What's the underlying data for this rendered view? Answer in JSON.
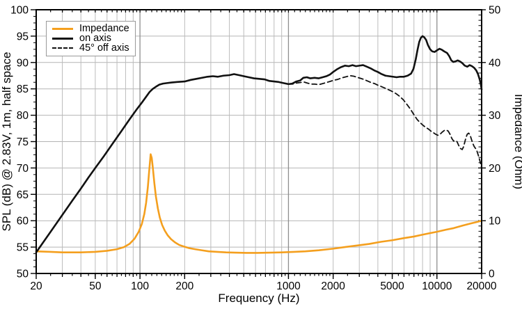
{
  "chart_data": {
    "type": "line",
    "x_axis": {
      "label": "Frequency (Hz)",
      "scale": "log",
      "min": 20,
      "max": 20000,
      "tick_labels": [
        20,
        50,
        100,
        200,
        1000,
        2000,
        5000,
        10000,
        20000
      ]
    },
    "y_left": {
      "label": "SPL (dB) @ 2.83V, 1m, half space",
      "min": 50,
      "max": 100,
      "tick_step": 5,
      "ticks": [
        50,
        55,
        60,
        65,
        70,
        75,
        80,
        85,
        90,
        95,
        100
      ]
    },
    "y_right": {
      "label": "Impedance (Ohm)",
      "min": 0,
      "max": 50,
      "tick_step": 10,
      "ticks": [
        0,
        10,
        20,
        30,
        40,
        50
      ]
    },
    "grid": {
      "minor_color": "#bcbcbc",
      "decade_color": "#8e8e8e",
      "horizontal_color": "#b4b4b4"
    },
    "series": [
      {
        "name": "Impedance",
        "axis": "right",
        "color": "#F49F1E",
        "style": "solid",
        "width": 2.6,
        "points": [
          [
            20,
            4.2
          ],
          [
            25,
            4.1
          ],
          [
            30,
            4.0
          ],
          [
            40,
            4.0
          ],
          [
            50,
            4.1
          ],
          [
            60,
            4.3
          ],
          [
            70,
            4.6
          ],
          [
            78,
            5.0
          ],
          [
            85,
            5.6
          ],
          [
            92,
            6.6
          ],
          [
            98,
            7.9
          ],
          [
            103,
            9.4
          ],
          [
            107,
            11.3
          ],
          [
            110,
            13.4
          ],
          [
            113,
            16.4
          ],
          [
            115,
            19.0
          ],
          [
            117,
            21.4
          ],
          [
            118,
            22.6
          ],
          [
            120,
            21.9
          ],
          [
            122,
            20.1
          ],
          [
            125,
            17.1
          ],
          [
            128,
            14.6
          ],
          [
            132,
            12.3
          ],
          [
            136,
            10.6
          ],
          [
            141,
            9.2
          ],
          [
            147,
            8.1
          ],
          [
            154,
            7.2
          ],
          [
            162,
            6.5
          ],
          [
            172,
            5.9
          ],
          [
            184,
            5.4
          ],
          [
            198,
            5.1
          ],
          [
            215,
            4.8
          ],
          [
            235,
            4.6
          ],
          [
            260,
            4.4
          ],
          [
            290,
            4.2
          ],
          [
            330,
            4.1
          ],
          [
            380,
            4.0
          ],
          [
            440,
            3.95
          ],
          [
            520,
            3.9
          ],
          [
            620,
            3.9
          ],
          [
            750,
            3.95
          ],
          [
            900,
            4.0
          ],
          [
            1100,
            4.1
          ],
          [
            1300,
            4.2
          ],
          [
            1600,
            4.4
          ],
          [
            2000,
            4.7
          ],
          [
            2400,
            5.0
          ],
          [
            2900,
            5.3
          ],
          [
            3500,
            5.6
          ],
          [
            4200,
            6.0
          ],
          [
            5000,
            6.3
          ],
          [
            6000,
            6.7
          ],
          [
            7000,
            7.0
          ],
          [
            8000,
            7.35
          ],
          [
            9000,
            7.65
          ],
          [
            10000,
            7.9
          ],
          [
            11500,
            8.3
          ],
          [
            13000,
            8.6
          ],
          [
            15000,
            9.1
          ],
          [
            17000,
            9.5
          ],
          [
            18500,
            9.75
          ],
          [
            20000,
            10.0
          ]
        ]
      },
      {
        "name": "on axis",
        "axis": "left",
        "color": "#111111",
        "style": "solid",
        "width": 2.6,
        "points": [
          [
            20,
            54.0
          ],
          [
            25,
            57.9
          ],
          [
            30,
            61.1
          ],
          [
            35,
            63.8
          ],
          [
            40,
            66.1
          ],
          [
            45,
            68.2
          ],
          [
            50,
            70.0
          ],
          [
            57,
            72.2
          ],
          [
            65,
            74.5
          ],
          [
            75,
            77.0
          ],
          [
            85,
            79.2
          ],
          [
            95,
            81.1
          ],
          [
            103,
            82.4
          ],
          [
            110,
            83.5
          ],
          [
            116,
            84.4
          ],
          [
            122,
            85.0
          ],
          [
            128,
            85.4
          ],
          [
            135,
            85.8
          ],
          [
            143,
            86.0
          ],
          [
            152,
            86.1
          ],
          [
            163,
            86.2
          ],
          [
            178,
            86.3
          ],
          [
            200,
            86.4
          ],
          [
            220,
            86.7
          ],
          [
            240,
            86.9
          ],
          [
            262,
            87.1
          ],
          [
            285,
            87.3
          ],
          [
            310,
            87.4
          ],
          [
            335,
            87.3
          ],
          [
            365,
            87.5
          ],
          [
            400,
            87.6
          ],
          [
            430,
            87.8
          ],
          [
            465,
            87.6
          ],
          [
            500,
            87.4
          ],
          [
            540,
            87.2
          ],
          [
            585,
            87.0
          ],
          [
            635,
            86.9
          ],
          [
            690,
            86.8
          ],
          [
            745,
            86.5
          ],
          [
            800,
            86.4
          ],
          [
            860,
            86.3
          ],
          [
            925,
            86.1
          ],
          [
            1000,
            85.9
          ],
          [
            1060,
            86.0
          ],
          [
            1130,
            86.4
          ],
          [
            1200,
            86.6
          ],
          [
            1260,
            87.1
          ],
          [
            1330,
            87.2
          ],
          [
            1400,
            87.0
          ],
          [
            1500,
            87.1
          ],
          [
            1600,
            87.0
          ],
          [
            1700,
            87.2
          ],
          [
            1800,
            87.4
          ],
          [
            1900,
            87.7
          ],
          [
            2000,
            88.2
          ],
          [
            2120,
            88.7
          ],
          [
            2250,
            89.1
          ],
          [
            2400,
            89.4
          ],
          [
            2550,
            89.3
          ],
          [
            2700,
            89.5
          ],
          [
            2850,
            89.3
          ],
          [
            3000,
            89.4
          ],
          [
            3180,
            89.5
          ],
          [
            3370,
            89.2
          ],
          [
            3570,
            88.9
          ],
          [
            3780,
            88.5
          ],
          [
            4000,
            88.2
          ],
          [
            4240,
            87.8
          ],
          [
            4500,
            87.5
          ],
          [
            4760,
            87.4
          ],
          [
            5050,
            87.3
          ],
          [
            5350,
            87.2
          ],
          [
            5650,
            87.3
          ],
          [
            6000,
            87.3
          ],
          [
            6350,
            87.5
          ],
          [
            6700,
            87.9
          ],
          [
            6950,
            88.8
          ],
          [
            7200,
            90.6
          ],
          [
            7400,
            92.4
          ],
          [
            7600,
            93.9
          ],
          [
            7800,
            94.7
          ],
          [
            8000,
            95.0
          ],
          [
            8200,
            94.8
          ],
          [
            8450,
            94.3
          ],
          [
            8700,
            93.3
          ],
          [
            9000,
            92.5
          ],
          [
            9300,
            92.1
          ],
          [
            9650,
            92.0
          ],
          [
            10000,
            92.3
          ],
          [
            10400,
            92.6
          ],
          [
            10800,
            92.4
          ],
          [
            11200,
            92.1
          ],
          [
            11700,
            91.8
          ],
          [
            12100,
            91.2
          ],
          [
            12500,
            90.4
          ],
          [
            12900,
            90.1
          ],
          [
            13300,
            90.2
          ],
          [
            13800,
            90.4
          ],
          [
            14300,
            90.2
          ],
          [
            14800,
            89.9
          ],
          [
            15400,
            89.4
          ],
          [
            16000,
            89.2
          ],
          [
            16600,
            89.5
          ],
          [
            17200,
            89.3
          ],
          [
            17800,
            89.0
          ],
          [
            18400,
            88.5
          ],
          [
            18900,
            87.8
          ],
          [
            19400,
            86.8
          ],
          [
            19700,
            86.0
          ],
          [
            20000,
            84.9
          ]
        ]
      },
      {
        "name": "45° off axis",
        "axis": "left",
        "color": "#111111",
        "style": "dashed",
        "width": 1.8,
        "dash": "7 4.5",
        "points": [
          [
            1000,
            85.9
          ],
          [
            1060,
            85.9
          ],
          [
            1130,
            86.1
          ],
          [
            1200,
            86.2
          ],
          [
            1270,
            86.3
          ],
          [
            1340,
            86.1
          ],
          [
            1420,
            85.9
          ],
          [
            1500,
            85.9
          ],
          [
            1600,
            85.8
          ],
          [
            1700,
            86.0
          ],
          [
            1800,
            86.2
          ],
          [
            1900,
            86.4
          ],
          [
            2000,
            86.6
          ],
          [
            2150,
            86.8
          ],
          [
            2300,
            87.1
          ],
          [
            2450,
            87.3
          ],
          [
            2600,
            87.5
          ],
          [
            2750,
            87.4
          ],
          [
            2900,
            87.2
          ],
          [
            3050,
            87.0
          ],
          [
            3220,
            86.8
          ],
          [
            3400,
            86.5
          ],
          [
            3600,
            86.2
          ],
          [
            3800,
            86.0
          ],
          [
            4000,
            85.7
          ],
          [
            4250,
            85.4
          ],
          [
            4500,
            85.1
          ],
          [
            4750,
            84.8
          ],
          [
            5000,
            84.5
          ],
          [
            5300,
            84.1
          ],
          [
            5600,
            83.6
          ],
          [
            5950,
            82.9
          ],
          [
            6300,
            82.0
          ],
          [
            6650,
            81.1
          ],
          [
            7000,
            80.1
          ],
          [
            7350,
            79.2
          ],
          [
            7700,
            78.6
          ],
          [
            8050,
            78.1
          ],
          [
            8400,
            77.7
          ],
          [
            8750,
            77.4
          ],
          [
            9100,
            77.0
          ],
          [
            9450,
            76.7
          ],
          [
            9800,
            76.4
          ],
          [
            10150,
            76.2
          ],
          [
            10500,
            76.4
          ],
          [
            10850,
            76.8
          ],
          [
            11200,
            77.1
          ],
          [
            11550,
            77.2
          ],
          [
            11900,
            77.0
          ],
          [
            12250,
            76.4
          ],
          [
            12600,
            75.6
          ],
          [
            12950,
            75.1
          ],
          [
            13300,
            75.2
          ],
          [
            13650,
            75.0
          ],
          [
            14000,
            74.3
          ],
          [
            14400,
            73.7
          ],
          [
            14800,
            73.5
          ],
          [
            15100,
            74.0
          ],
          [
            15400,
            74.9
          ],
          [
            15700,
            75.8
          ],
          [
            16000,
            76.4
          ],
          [
            16350,
            76.6
          ],
          [
            16700,
            76.3
          ],
          [
            17050,
            75.5
          ],
          [
            17400,
            74.7
          ],
          [
            17800,
            74.1
          ],
          [
            18200,
            73.7
          ],
          [
            18600,
            73.2
          ],
          [
            19000,
            72.4
          ],
          [
            19400,
            71.5
          ],
          [
            19700,
            70.8
          ],
          [
            20000,
            70.0
          ]
        ]
      }
    ],
    "legend": {
      "position": "top-left",
      "items": [
        {
          "label": "Impedance"
        },
        {
          "label": "on axis"
        },
        {
          "label": "45° off axis"
        }
      ]
    }
  }
}
